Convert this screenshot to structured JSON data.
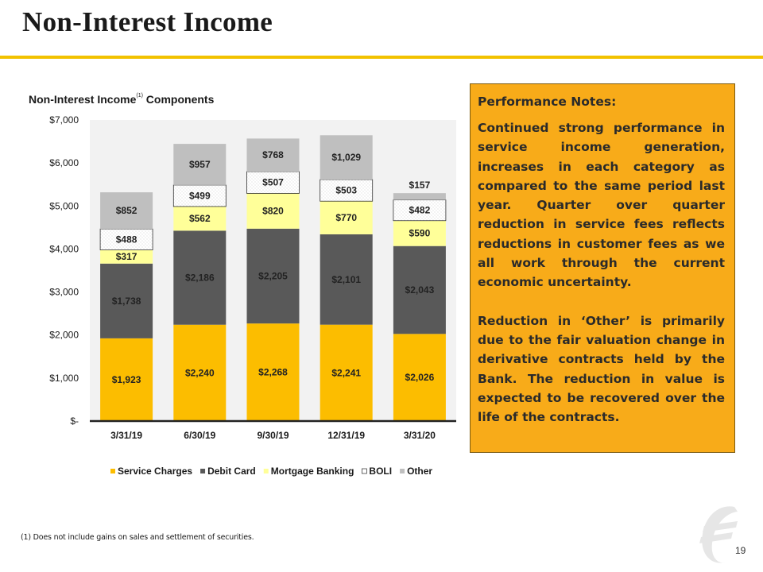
{
  "slide": {
    "title": "Non-Interest Income",
    "page_number": "19",
    "footnote": "(1)    Does not include gains on sales and settlement of securities."
  },
  "chart_data": {
    "type": "bar",
    "stacked": true,
    "title_main": "Non-Interest Income",
    "title_sup": "(1)",
    "title_rest": " Components",
    "categories": [
      "3/31/19",
      "6/30/19",
      "9/30/19",
      "12/31/19",
      "3/31/20"
    ],
    "ylim": [
      0,
      7000
    ],
    "yticks": [
      {
        "value": 0,
        "label": "$-"
      },
      {
        "value": 1000,
        "label": "$1,000"
      },
      {
        "value": 2000,
        "label": "$2,000"
      },
      {
        "value": 3000,
        "label": "$3,000"
      },
      {
        "value": 4000,
        "label": "$4,000"
      },
      {
        "value": 5000,
        "label": "$5,000"
      },
      {
        "value": 6000,
        "label": "$6,000"
      },
      {
        "value": 7000,
        "label": "$7,000"
      }
    ],
    "grid": false,
    "legend_position": "bottom",
    "series": [
      {
        "name": "Service Charges",
        "key": "service-charges",
        "color": "#fcbd00",
        "values": [
          1923,
          2240,
          2268,
          2241,
          2026
        ],
        "labels": [
          "$1,923",
          "$2,240",
          "$2,268",
          "$2,241",
          "$2,026"
        ]
      },
      {
        "name": "Debit Card",
        "key": "debit-card",
        "color": "#595959",
        "values": [
          1738,
          2186,
          2205,
          2101,
          2043
        ],
        "labels": [
          "$1,738",
          "$2,186",
          "$2,205",
          "$2,101",
          "$2,043"
        ]
      },
      {
        "name": "Mortgage Banking",
        "key": "mortgage-banking",
        "color": "#ffff99",
        "values": [
          317,
          562,
          820,
          770,
          590
        ],
        "labels": [
          "$317",
          "$562",
          "$820",
          "$770",
          "$590"
        ]
      },
      {
        "name": "BOLI",
        "key": "boli",
        "color": "#ffffff",
        "values": [
          488,
          499,
          507,
          503,
          482
        ],
        "labels": [
          "$488",
          "$499",
          "$507",
          "$503",
          "$482"
        ]
      },
      {
        "name": "Other",
        "key": "other",
        "color": "#bfbfbf",
        "values": [
          852,
          957,
          768,
          1029,
          157
        ],
        "labels": [
          "$852",
          "$957",
          "$768",
          "$1,029",
          "$157"
        ]
      }
    ]
  },
  "notes": {
    "heading": "Performance Notes:",
    "paragraph1": "Continued strong performance in service income generation, increases in each category as compared to the same period last year.  Quarter over quarter reduction in service fees reflects reductions in customer fees as we all work through the current economic uncertainty.",
    "paragraph2": "Reduction in ‘Other’ is primarily due to the fair valuation change in derivative contracts held by the Bank.  The reduction in value is expected to be recovered over the life of the contracts."
  },
  "colors": {
    "accent": "#f2c200",
    "notes_background": "#f8ab19",
    "plot_background": "#f2f2f2"
  },
  "logo": {
    "icon": "euro-style-logo-icon"
  }
}
